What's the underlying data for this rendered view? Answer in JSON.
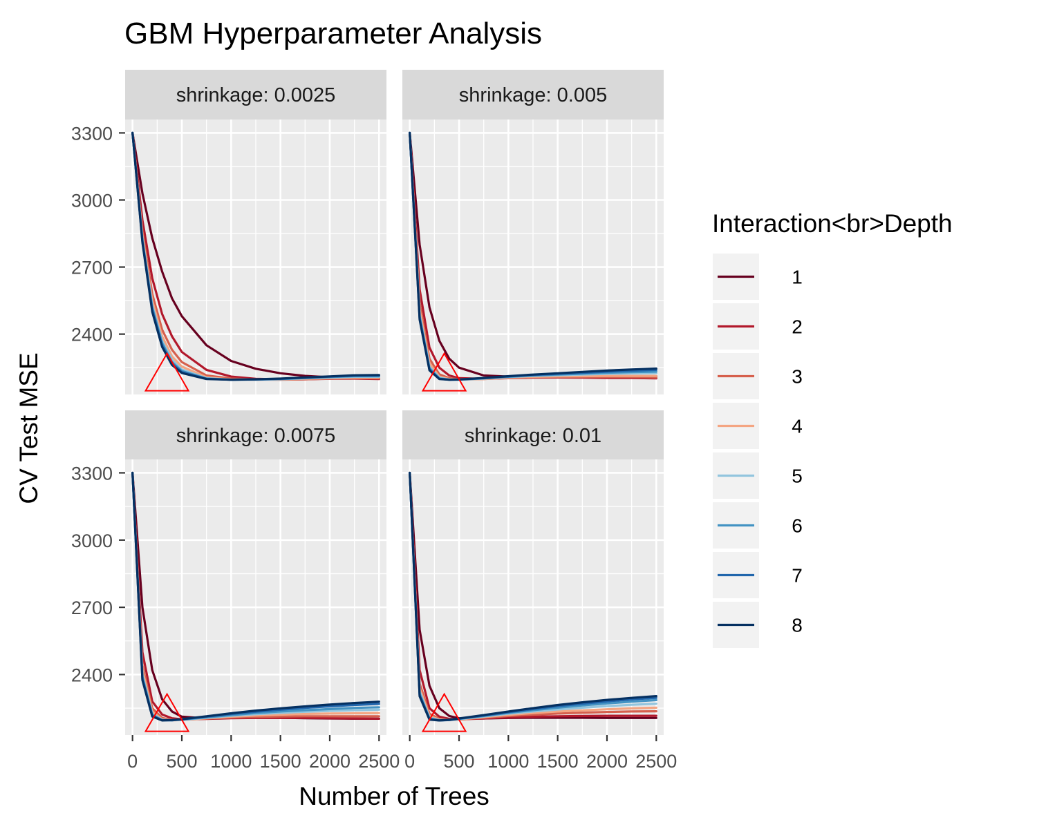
{
  "chart_data": {
    "type": "line",
    "title": "GBM Hyperparameter Analysis",
    "xlabel": "Number of Trees",
    "ylabel": "CV Test MSE",
    "xlim": [
      -75,
      2575
    ],
    "ylim": [
      2130,
      3360
    ],
    "x_ticks": [
      0,
      500,
      1000,
      1500,
      2000,
      2500
    ],
    "y_ticks": [
      2400,
      2700,
      3000,
      3300
    ],
    "grid": true,
    "legend": {
      "title": "Interaction<br>Depth",
      "position": "right",
      "entries": [
        "1",
        "2",
        "3",
        "4",
        "5",
        "6",
        "7",
        "8"
      ]
    },
    "colors": [
      "#67001f",
      "#b2182b",
      "#d6604d",
      "#f4a582",
      "#92c5de",
      "#4393c3",
      "#2166ac",
      "#053061"
    ],
    "x": [
      0,
      100,
      200,
      300,
      400,
      500,
      750,
      1000,
      1250,
      1500,
      1750,
      2000,
      2250,
      2500
    ],
    "panels": [
      {
        "strip": "shrinkage: 0.0025",
        "marker": {
          "x": 350,
          "y": 2230
        },
        "series": [
          {
            "name": "1",
            "values": [
              3300,
              3030,
              2830,
              2680,
              2560,
              2480,
              2350,
              2280,
              2245,
              2225,
              2213,
              2207,
              2203,
              2200
            ]
          },
          {
            "name": "2",
            "values": [
              3300,
              2910,
              2650,
              2490,
              2390,
              2320,
              2240,
              2210,
              2200,
              2197,
              2198,
              2200,
              2201,
              2199
            ]
          },
          {
            "name": "3",
            "values": [
              3300,
              2860,
              2580,
              2420,
              2330,
              2275,
              2215,
              2201,
              2197,
              2196,
              2198,
              2201,
              2203,
              2202
            ]
          },
          {
            "name": "4",
            "values": [
              3300,
              2840,
              2550,
              2390,
              2300,
              2255,
              2207,
              2197,
              2196,
              2197,
              2200,
              2203,
              2206,
              2206
            ]
          },
          {
            "name": "5",
            "values": [
              3300,
              2830,
              2530,
              2370,
              2285,
              2242,
              2203,
              2196,
              2196,
              2198,
              2202,
              2206,
              2209,
              2209
            ]
          },
          {
            "name": "6",
            "values": [
              3300,
              2820,
              2520,
              2360,
              2275,
              2235,
              2201,
              2196,
              2197,
              2199,
              2204,
              2208,
              2212,
              2212
            ]
          },
          {
            "name": "7",
            "values": [
              3300,
              2815,
              2510,
              2350,
              2268,
              2230,
              2200,
              2196,
              2197,
              2200,
              2205,
              2210,
              2214,
              2215
            ]
          },
          {
            "name": "8",
            "values": [
              3300,
              2810,
              2500,
              2343,
              2262,
              2226,
              2199,
              2196,
              2198,
              2201,
              2206,
              2211,
              2216,
              2217
            ]
          }
        ]
      },
      {
        "strip": "shrinkage: 0.005",
        "marker": {
          "x": 350,
          "y": 2230
        },
        "series": [
          {
            "name": "1",
            "values": [
              3300,
              2800,
              2520,
              2370,
              2290,
              2250,
              2215,
              2210,
              2210,
              2212,
              2213,
              2212,
              2211,
              2212
            ]
          },
          {
            "name": "2",
            "values": [
              3300,
              2600,
              2340,
              2250,
              2215,
              2203,
              2200,
              2203,
              2205,
              2206,
              2205,
              2204,
              2204,
              2202
            ]
          },
          {
            "name": "3",
            "values": [
              3300,
              2540,
              2290,
              2220,
              2203,
              2198,
              2199,
              2204,
              2207,
              2208,
              2208,
              2208,
              2208,
              2206
            ]
          },
          {
            "name": "4",
            "values": [
              3300,
              2510,
              2270,
              2210,
              2199,
              2196,
              2199,
              2205,
              2209,
              2211,
              2212,
              2213,
              2213,
              2213
            ]
          },
          {
            "name": "5",
            "values": [
              3300,
              2490,
              2255,
              2205,
              2197,
              2196,
              2201,
              2208,
              2213,
              2216,
              2219,
              2222,
              2224,
              2225
            ]
          },
          {
            "name": "6",
            "values": [
              3300,
              2480,
              2248,
              2202,
              2196,
              2196,
              2202,
              2209,
              2215,
              2219,
              2223,
              2227,
              2230,
              2232
            ]
          },
          {
            "name": "7",
            "values": [
              3300,
              2470,
              2242,
              2200,
              2196,
              2197,
              2203,
              2211,
              2217,
              2222,
              2227,
              2232,
              2236,
              2240
            ]
          },
          {
            "name": "8",
            "values": [
              3300,
              2465,
              2238,
              2199,
              2196,
              2197,
              2204,
              2212,
              2219,
              2225,
              2231,
              2237,
              2242,
              2246
            ]
          }
        ]
      },
      {
        "strip": "shrinkage: 0.0075",
        "marker": {
          "x": 350,
          "y": 2230
        },
        "series": [
          {
            "name": "1",
            "values": [
              3300,
              2700,
              2420,
              2290,
              2235,
              2212,
              2204,
              2207,
              2208,
              2207,
              2205,
              2204,
              2203,
              2203
            ]
          },
          {
            "name": "2",
            "values": [
              3300,
              2500,
              2280,
              2222,
              2205,
              2200,
              2202,
              2205,
              2206,
              2206,
              2206,
              2205,
              2204,
              2203
            ]
          },
          {
            "name": "3",
            "values": [
              3300,
              2440,
              2250,
              2206,
              2198,
              2198,
              2203,
              2208,
              2211,
              2213,
              2214,
              2214,
              2214,
              2214
            ]
          },
          {
            "name": "4",
            "values": [
              3300,
              2420,
              2235,
              2200,
              2196,
              2197,
              2205,
              2212,
              2217,
              2221,
              2224,
              2226,
              2227,
              2228
            ]
          },
          {
            "name": "5",
            "values": [
              3300,
              2400,
              2225,
              2198,
              2196,
              2198,
              2207,
              2216,
              2223,
              2229,
              2234,
              2238,
              2241,
              2243
            ]
          },
          {
            "name": "6",
            "values": [
              3300,
              2390,
              2220,
              2197,
              2196,
              2199,
              2209,
              2219,
              2228,
              2235,
              2241,
              2246,
              2251,
              2254
            ]
          },
          {
            "name": "7",
            "values": [
              3300,
              2380,
              2216,
              2196,
              2196,
              2200,
              2212,
              2224,
              2234,
              2243,
              2251,
              2258,
              2264,
              2269
            ]
          },
          {
            "name": "8",
            "values": [
              3300,
              2375,
              2213,
              2195,
              2197,
              2201,
              2214,
              2227,
              2239,
              2249,
              2258,
              2266,
              2273,
              2279
            ]
          }
        ]
      },
      {
        "strip": "shrinkage: 0.01",
        "marker": {
          "x": 350,
          "y": 2230
        },
        "series": [
          {
            "name": "1",
            "values": [
              3300,
              2600,
              2350,
              2250,
              2215,
              2205,
              2204,
              2206,
              2207,
              2207,
              2207,
              2206,
              2206,
              2206
            ]
          },
          {
            "name": "2",
            "values": [
              3300,
              2420,
              2250,
              2212,
              2202,
              2200,
              2204,
              2209,
              2212,
              2214,
              2215,
              2216,
              2216,
              2216
            ]
          },
          {
            "name": "3",
            "values": [
              3300,
              2360,
              2225,
              2202,
              2198,
              2199,
              2207,
              2215,
              2221,
              2226,
              2230,
              2233,
              2235,
              2236
            ]
          },
          {
            "name": "4",
            "values": [
              3300,
              2340,
              2215,
              2199,
              2197,
              2200,
              2210,
              2220,
              2228,
              2235,
              2240,
              2245,
              2249,
              2252
            ]
          },
          {
            "name": "5",
            "values": [
              3300,
              2325,
              2208,
              2197,
              2197,
              2201,
              2213,
              2225,
              2235,
              2244,
              2252,
              2259,
              2265,
              2270
            ]
          },
          {
            "name": "6",
            "values": [
              3300,
              2315,
              2204,
              2196,
              2197,
              2202,
              2215,
              2229,
              2241,
              2252,
              2262,
              2271,
              2279,
              2286
            ]
          },
          {
            "name": "7",
            "values": [
              3300,
              2308,
              2201,
              2195,
              2197,
              2203,
              2217,
              2232,
              2246,
              2259,
              2270,
              2280,
              2289,
              2296
            ]
          },
          {
            "name": "8",
            "values": [
              3300,
              2303,
              2199,
              2195,
              2198,
              2204,
              2219,
              2235,
              2250,
              2264,
              2276,
              2287,
              2296,
              2304
            ]
          }
        ]
      }
    ]
  }
}
